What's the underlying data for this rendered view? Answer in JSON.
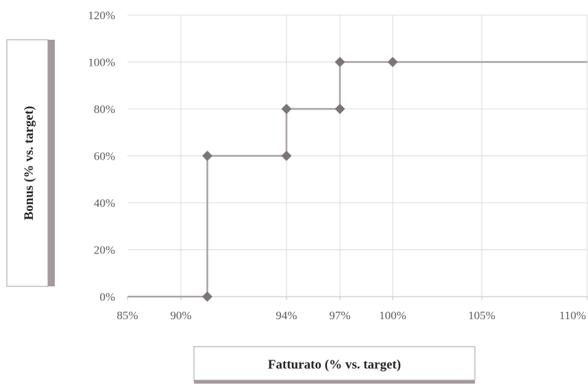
{
  "chart_data": {
    "type": "line",
    "title": "",
    "xlabel": "Fatturato (% vs. target)",
    "ylabel": "Bonus (% vs. target)",
    "x_ticks": [
      "85%",
      "90%",
      "94%",
      "97%",
      "100%",
      "105%",
      "110%"
    ],
    "x_tick_values": [
      85,
      90,
      94,
      97,
      100,
      105,
      110
    ],
    "y_ticks": [
      "0%",
      "20%",
      "40%",
      "60%",
      "80%",
      "100%",
      "120%"
    ],
    "y_tick_values": [
      0,
      20,
      40,
      60,
      80,
      100,
      120
    ],
    "xlim": [
      85,
      110
    ],
    "ylim": [
      0,
      120
    ],
    "grid": "horizontal and vertical",
    "legend": "none",
    "series": [
      {
        "line": [
          [
            85,
            0
          ],
          [
            91,
            0
          ],
          [
            91,
            60
          ],
          [
            94,
            60
          ],
          [
            94,
            80
          ],
          [
            97,
            80
          ],
          [
            97,
            100
          ],
          [
            110,
            100
          ]
        ],
        "markers": [
          [
            91,
            0
          ],
          [
            91,
            60
          ],
          [
            94,
            60
          ],
          [
            94,
            80
          ],
          [
            97,
            80
          ],
          [
            97,
            100
          ],
          [
            100,
            100
          ]
        ]
      }
    ],
    "colors": {
      "line": "#a9a1a3",
      "marker": "#7c7578",
      "grid": "#d9d9d9",
      "label_box_shadow": "#a39a9d"
    }
  }
}
